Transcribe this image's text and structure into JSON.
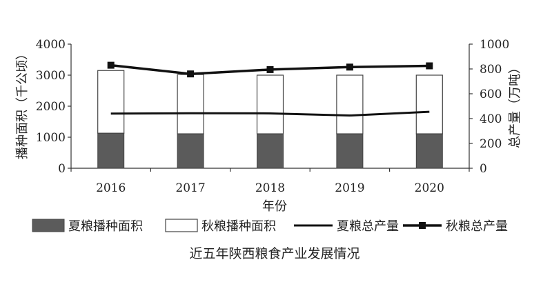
{
  "chart_data": {
    "type": "bar",
    "categories": [
      "2016",
      "2017",
      "2018",
      "2019",
      "2020"
    ],
    "xlabel": "年份",
    "ylabel_left": "播种面积（千公顷）",
    "ylabel_right": "总产量（万吨）",
    "ylim_left": [
      0,
      4000
    ],
    "ylim_right": [
      0,
      1000
    ],
    "yticks_left": [
      "0",
      "1000",
      "2000",
      "3000",
      "4000"
    ],
    "yticks_right": [
      "0",
      "200",
      "400",
      "600",
      "800",
      "1000"
    ],
    "series": [
      {
        "name": "夏粮播种面积",
        "kind": "stacked-bar",
        "axis": "left",
        "color": "#5b5b5b",
        "values": [
          1130,
          1110,
          1110,
          1110,
          1110
        ]
      },
      {
        "name": "秋粮播种面积",
        "kind": "stacked-bar",
        "axis": "left",
        "color": "#ffffff",
        "values": [
          2020,
          1910,
          1890,
          1890,
          1890
        ]
      },
      {
        "name": "夏粮总产量",
        "kind": "line",
        "axis": "right",
        "color": "#111111",
        "values": [
          440,
          443,
          442,
          425,
          455
        ]
      },
      {
        "name": "秋粮总产量",
        "kind": "line-marker",
        "axis": "right",
        "color": "#111111",
        "values": [
          830,
          760,
          795,
          815,
          825
        ]
      }
    ],
    "caption": "近五年陕西粮食产业发展情况",
    "legend_position": "bottom",
    "grid": false
  }
}
